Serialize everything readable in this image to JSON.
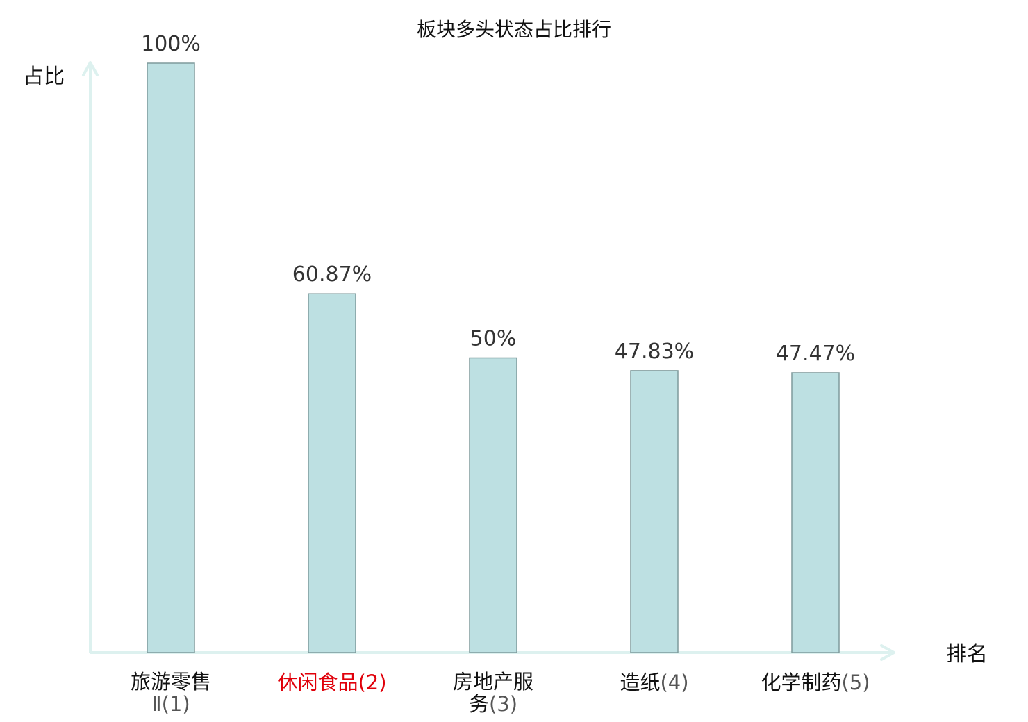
{
  "chart_data": {
    "type": "bar",
    "title": "板块多头状态占比排行",
    "ylabel": "占比",
    "xlabel": "排名",
    "ylim": [
      0,
      100
    ],
    "grid": false,
    "categories": [
      "旅游零售Ⅱ",
      "休闲食品",
      "房地产服务",
      "造纸",
      "化学制药"
    ],
    "ranks": [
      "(1)",
      "(2)",
      "(3)",
      "(4)",
      "(5)"
    ],
    "values": [
      100,
      60.87,
      50,
      47.83,
      47.47
    ],
    "value_labels": [
      "100%",
      "60.87%",
      "50%",
      "47.83%",
      "47.47%"
    ],
    "highlight_index": 1,
    "colors": {
      "bar_fill": "#bde0e2",
      "bar_stroke": "#7f9a9c",
      "axis": "#ddf1ef",
      "highlight_text": "#e0000a",
      "category_text": "#111111",
      "rank_text": "#555555"
    }
  }
}
